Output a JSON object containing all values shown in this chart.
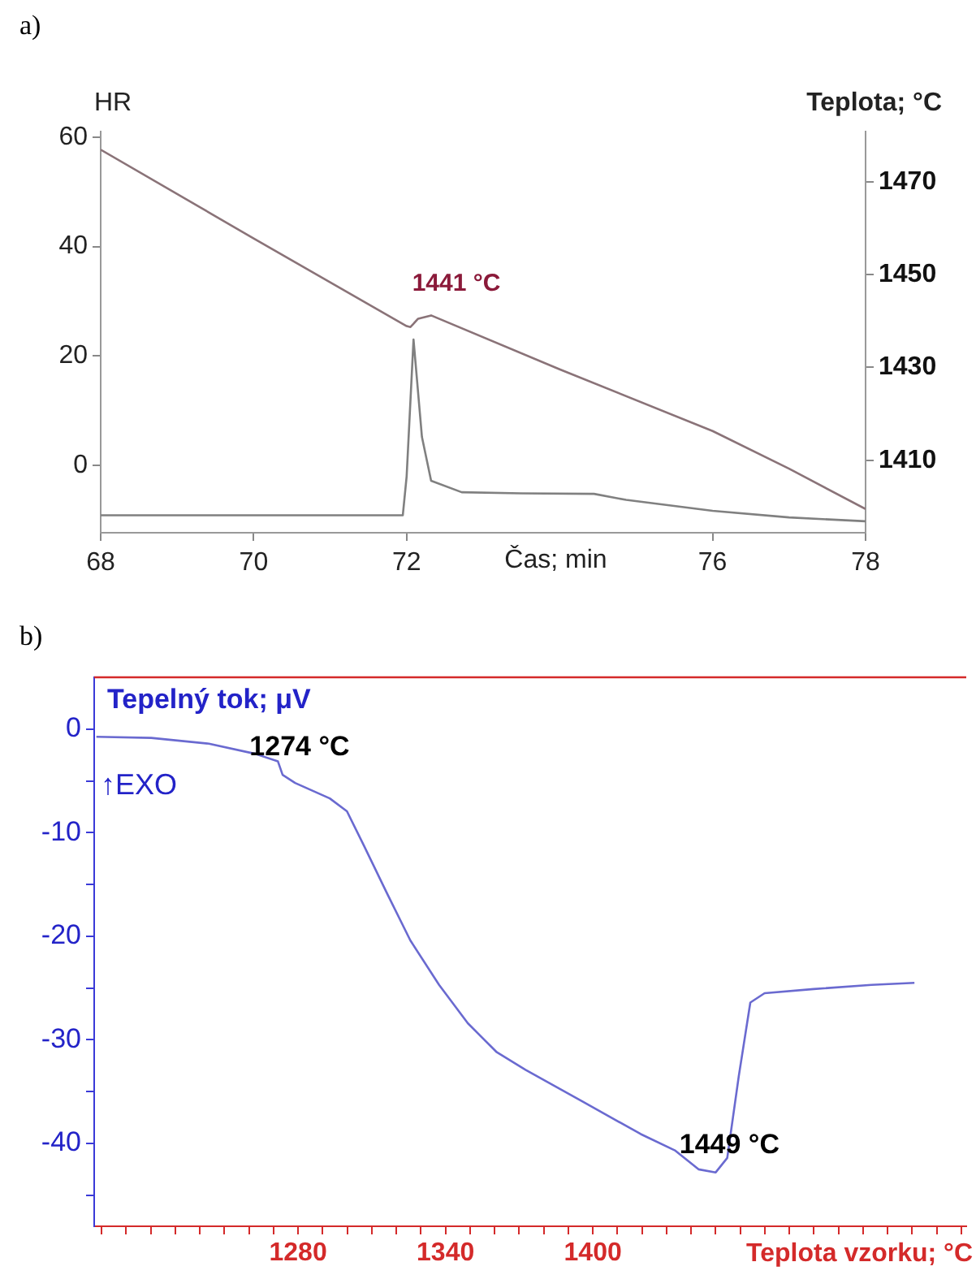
{
  "chart_data": [
    {
      "type": "line",
      "title": "a)",
      "xlabel": "Čas; min",
      "ylabel": "HR",
      "y2label": "Teplota; °C",
      "xlim": [
        68,
        78
      ],
      "xticks": [
        68,
        70,
        72,
        76,
        78
      ],
      "ylim": [
        -12.3,
        61
      ],
      "yticks": [
        0,
        20,
        40,
        60
      ],
      "y2lim": [
        1394.4,
        1480.8
      ],
      "y2ticks": [
        1410,
        1430,
        1450,
        1470
      ],
      "grid": false,
      "series": [
        {
          "color": "#808080",
          "x": [
            68,
            71.95,
            72.0,
            72.09,
            72.2,
            72.32,
            72.72,
            73.5,
            74.45,
            74.87,
            76,
            77,
            78
          ],
          "values": [
            -9.1,
            -9.1,
            -2,
            23.0,
            5.2,
            -2.8,
            -4.9,
            -5.1,
            -5.2,
            -6.3,
            -8.3,
            -9.5,
            -10.2
          ]
        },
        {
          "axis": "y2",
          "color": "#8a7378",
          "x": [
            68,
            70,
            72,
            72.05,
            72.15,
            72.32,
            74,
            76,
            77,
            78
          ],
          "values": [
            1476.9,
            1457.8,
            1438.9,
            1438.7,
            1440.5,
            1441.2,
            1429.6,
            1416.3,
            1408.2,
            1399.5
          ]
        }
      ],
      "annotations": [
        "1441 °C"
      ]
    },
    {
      "type": "line",
      "title": "b)",
      "xlabel": "Teplota vzorku; °C",
      "ylabel": "Tepelný tok; μV",
      "xlim": [
        1197,
        1552
      ],
      "xticks": [
        {
          "value": 1200,
          "label": null
        },
        {
          "value": 1210,
          "label": null
        },
        {
          "value": 1220,
          "label": null
        },
        {
          "value": 1230,
          "label": null
        },
        {
          "value": 1240,
          "label": null
        },
        {
          "value": 1250,
          "label": null
        },
        {
          "value": 1260,
          "label": null
        },
        {
          "value": 1270,
          "label": null
        },
        1280,
        {
          "value": 1290,
          "label": null
        },
        {
          "value": 1300,
          "label": null
        },
        {
          "value": 1310,
          "label": null
        },
        {
          "value": 1320,
          "label": null
        },
        {
          "value": 1330,
          "label": null
        },
        1340,
        {
          "value": 1350,
          "label": null
        },
        {
          "value": 1360,
          "label": null
        },
        {
          "value": 1370,
          "label": null
        },
        {
          "value": 1380,
          "label": null
        },
        {
          "value": 1390,
          "label": null
        },
        1400,
        {
          "value": 1410,
          "label": null
        },
        {
          "value": 1420,
          "label": null
        },
        {
          "value": 1430,
          "label": null
        },
        {
          "value": 1440,
          "label": null
        },
        {
          "value": 1450,
          "label": null
        },
        {
          "value": 1460,
          "label": null
        },
        {
          "value": 1470,
          "label": null
        },
        {
          "value": 1480,
          "label": null
        },
        {
          "value": 1490,
          "label": null
        },
        {
          "value": 1500,
          "label": null
        },
        {
          "value": 1510,
          "label": null
        },
        {
          "value": 1520,
          "label": null
        },
        {
          "value": 1530,
          "label": null
        },
        {
          "value": 1540,
          "label": null
        },
        {
          "value": 1550,
          "label": null
        }
      ],
      "ylim": [
        -48,
        5
      ],
      "yticks": [
        {
          "value": -45,
          "label": null
        },
        -40,
        {
          "value": -35,
          "label": null
        },
        -30,
        {
          "value": -25,
          "label": null
        },
        -20,
        {
          "value": -15,
          "label": null
        },
        -10,
        {
          "value": -5,
          "label": null
        },
        0
      ],
      "grid": false,
      "series": [
        {
          "color": "#6a6ad0",
          "x": [
            1197.9,
            1220.2,
            1243.7,
            1262.4,
            1271.8,
            1273.7,
            1278.8,
            1292.9,
            1299.9,
            1306.9,
            1316.3,
            1325.7,
            1337.4,
            1349.1,
            1360.9,
            1372.6,
            1396.1,
            1419.5,
            1433.6,
            1443,
            1450,
            1454.7,
            1459.4,
            1464.1,
            1469.9,
            1489.9,
            1513.4,
            1530.9
          ],
          "values": [
            -0.74,
            -0.85,
            -1.41,
            -2.38,
            -3.12,
            -4.42,
            -5.2,
            -6.69,
            -7.94,
            -11.3,
            -15.9,
            -20.4,
            -24.7,
            -28.4,
            -31.2,
            -32.9,
            -36.0,
            -39.1,
            -40.7,
            -42.5,
            -42.8,
            -41.4,
            -33.5,
            -26.4,
            -25.5,
            -25.1,
            -24.7,
            -24.5
          ]
        }
      ],
      "annotations": [
        "↑EXO",
        {
          "text": "1274 °C",
          "x": 1274,
          "y": -4.42
        },
        {
          "text": "1449 °C",
          "x": 1449,
          "y": -42.8
        }
      ]
    }
  ]
}
